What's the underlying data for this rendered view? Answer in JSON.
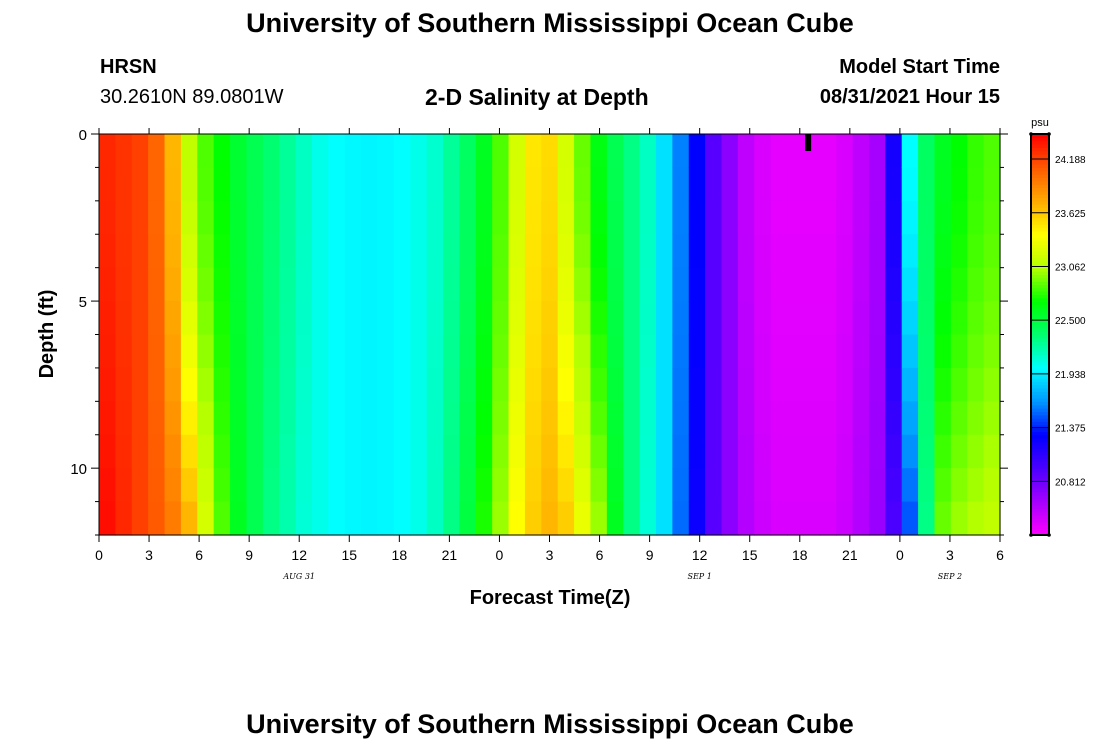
{
  "header": {
    "title_top": "University of Southern Mississippi Ocean Cube",
    "station_name": "HRSN",
    "station_coords": "30.2610N  89.0801W",
    "subtitle": "2-D Salinity at Depth",
    "model_start_label": "Model Start Time",
    "model_start_value": "08/31/2021 Hour 15"
  },
  "footer": {
    "title_bottom": "University of Southern Mississippi Ocean Cube"
  },
  "chart_data": {
    "type": "heatmap",
    "title": "2-D Salinity at Depth",
    "xlabel": "Forecast Time(Z)",
    "ylabel": "Depth (ft)",
    "x_hours": [
      0,
      54
    ],
    "y_range": [
      0,
      12
    ],
    "x_ticks": [
      {
        "h": 0,
        "label": "0"
      },
      {
        "h": 3,
        "label": "3"
      },
      {
        "h": 6,
        "label": "6"
      },
      {
        "h": 9,
        "label": "9"
      },
      {
        "h": 12,
        "label": "12"
      },
      {
        "h": 15,
        "label": "15"
      },
      {
        "h": 18,
        "label": "18"
      },
      {
        "h": 21,
        "label": "21"
      },
      {
        "h": 24,
        "label": "0"
      },
      {
        "h": 27,
        "label": "3"
      },
      {
        "h": 30,
        "label": "6"
      },
      {
        "h": 33,
        "label": "9"
      },
      {
        "h": 36,
        "label": "12"
      },
      {
        "h": 39,
        "label": "15"
      },
      {
        "h": 42,
        "label": "18"
      },
      {
        "h": 45,
        "label": "21"
      },
      {
        "h": 48,
        "label": "0"
      },
      {
        "h": 51,
        "label": "3"
      },
      {
        "h": 54,
        "label": "6"
      }
    ],
    "date_labels": [
      {
        "h": 12,
        "label": "AUG 31"
      },
      {
        "h": 36,
        "label": "SEP 1"
      },
      {
        "h": 51,
        "label": "SEP 2"
      }
    ],
    "y_ticks": [
      {
        "v": 0,
        "label": "0"
      },
      {
        "v": 5,
        "label": "5"
      },
      {
        "v": 10,
        "label": "10"
      }
    ],
    "colorbar": {
      "unit": "psu",
      "min": 20.25,
      "max": 24.45,
      "ticks": [
        24.188,
        23.625,
        23.062,
        22.5,
        21.938,
        21.375,
        20.812
      ],
      "colors": [
        "#ff00ff",
        "#a600ff",
        "#4b00ff",
        "#0000ff",
        "#0096ff",
        "#00ffff",
        "#00ff70",
        "#00ff00",
        "#b4ff00",
        "#ffff00",
        "#ffaa00",
        "#ff5a00",
        "#ff0000"
      ]
    },
    "salinity_surface": [
      24.3,
      24.25,
      24.2,
      24.05,
      23.7,
      23.1,
      22.85,
      22.7,
      22.55,
      22.45,
      22.35,
      22.25,
      22.15,
      22.05,
      22.0,
      21.98,
      21.97,
      21.98,
      22.0,
      22.05,
      22.12,
      22.25,
      22.4,
      22.6,
      22.85,
      23.2,
      23.5,
      23.55,
      23.2,
      22.9,
      22.65,
      22.45,
      22.3,
      22.15,
      21.9,
      21.6,
      21.3,
      20.9,
      20.7,
      20.5,
      20.4,
      20.35,
      20.35,
      20.35,
      20.35,
      20.4,
      20.5,
      20.6,
      21.2,
      22.0,
      22.4,
      22.6,
      22.7,
      22.8,
      22.85
    ],
    "salinity_bottom": [
      24.4,
      24.3,
      24.2,
      24.1,
      23.95,
      23.7,
      23.2,
      22.85,
      22.6,
      22.45,
      22.3,
      22.2,
      22.1,
      22.05,
      22.0,
      21.98,
      21.97,
      21.98,
      22.0,
      22.05,
      22.15,
      22.3,
      22.5,
      22.75,
      23.0,
      23.4,
      23.6,
      23.7,
      23.6,
      23.3,
      23.0,
      22.6,
      22.3,
      22.1,
      21.9,
      21.55,
      21.25,
      20.9,
      20.7,
      20.55,
      20.45,
      20.4,
      20.4,
      20.4,
      20.4,
      20.45,
      20.55,
      20.65,
      20.95,
      21.5,
      22.3,
      22.9,
      23.0,
      23.05,
      23.1
    ],
    "current_time_marker_hour": 42.5
  }
}
